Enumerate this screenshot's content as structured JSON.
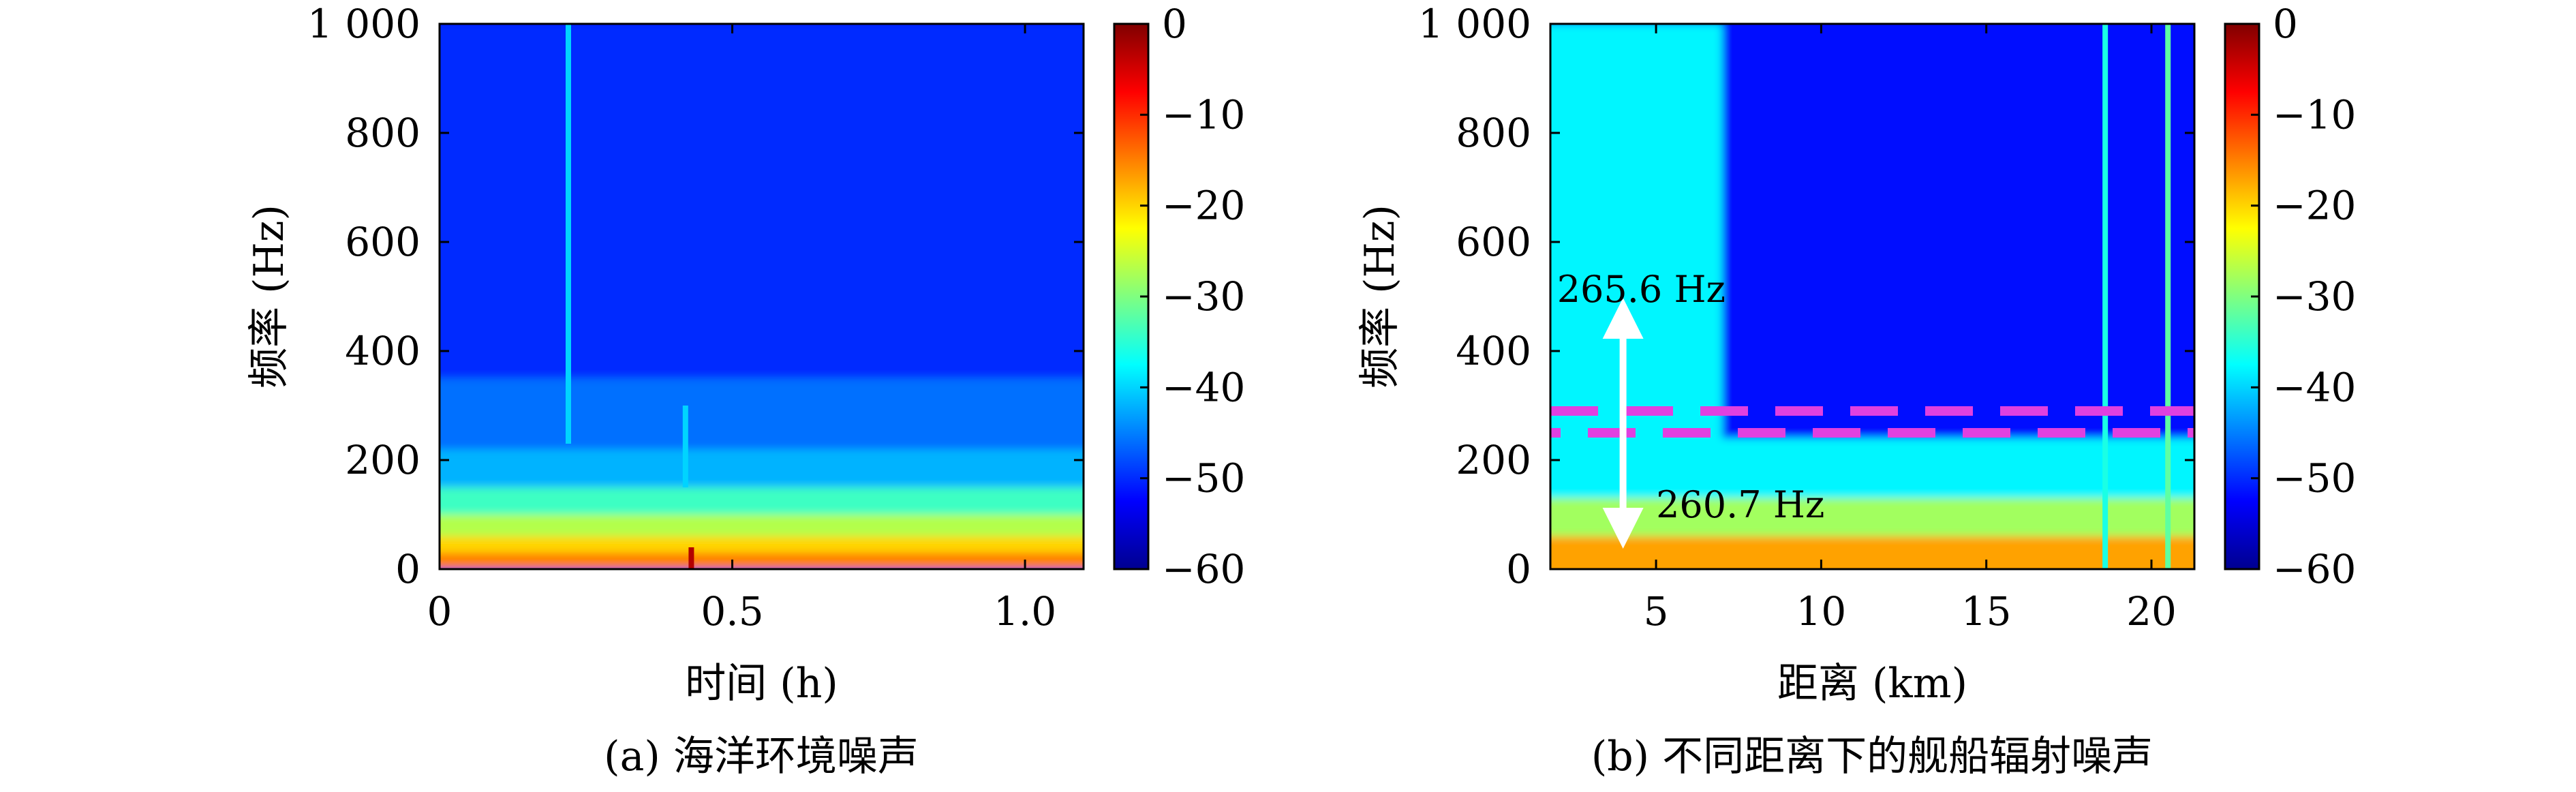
{
  "chart_data": [
    {
      "type": "heatmap",
      "subtitle": "(a) 海洋环境噪声",
      "xlabel": "时间 (h)",
      "ylabel": "频率 (Hz)",
      "xlim": [
        0,
        1.1
      ],
      "ylim": [
        0,
        1000
      ],
      "xticks": [
        0,
        0.5,
        1.0
      ],
      "xtick_labels": [
        "0",
        "0.5",
        "1.0"
      ],
      "yticks": [
        0,
        200,
        400,
        600,
        800,
        1000
      ],
      "ytick_labels": [
        "0",
        "200",
        "400",
        "600",
        "800",
        "1 000"
      ],
      "colorbar": {
        "range": [
          -60,
          0
        ],
        "ticks": [
          0,
          -10,
          -20,
          -30,
          -40,
          -50,
          -60
        ],
        "tick_labels": [
          "0",
          "−10",
          "−20",
          "−30",
          "−40",
          "−50",
          "−60"
        ]
      },
      "bands": [
        {
          "from": 0,
          "to": 30,
          "level": -15
        },
        {
          "from": 30,
          "to": 60,
          "level": -20
        },
        {
          "from": 60,
          "to": 100,
          "level": -27
        },
        {
          "from": 100,
          "to": 150,
          "level": -34
        },
        {
          "from": 150,
          "to": 220,
          "level": -42
        },
        {
          "from": 220,
          "to": 350,
          "level": -46
        },
        {
          "from": 350,
          "to": 1000,
          "level": -50
        }
      ],
      "lines": [
        {
          "x": 0.22,
          "from": 230,
          "to": 1000,
          "level": -40
        },
        {
          "x": 0.42,
          "from": 150,
          "to": 300,
          "level": -40
        },
        {
          "x": 0.43,
          "from": 0,
          "to": 40,
          "level": -3
        }
      ],
      "annotations": []
    },
    {
      "type": "heatmap",
      "subtitle": "(b) 不同距离下的舰船辐射噪声",
      "xlabel": "距离 (km)",
      "ylabel": "频率 (Hz)",
      "xlim": [
        1.8,
        21.3
      ],
      "ylim": [
        0,
        1000
      ],
      "xticks": [
        5,
        10,
        15,
        20
      ],
      "xtick_labels": [
        "5",
        "10",
        "15",
        "20"
      ],
      "yticks": [
        0,
        200,
        400,
        600,
        800,
        1000
      ],
      "ytick_labels": [
        "0",
        "200",
        "400",
        "600",
        "800",
        "1 000"
      ],
      "colorbar": {
        "range": [
          -60,
          0
        ],
        "ticks": [
          0,
          -10,
          -20,
          -30,
          -40,
          -50,
          -60
        ],
        "tick_labels": [
          "0",
          "−10",
          "−20",
          "−30",
          "−40",
          "−50",
          "−60"
        ]
      },
      "regions": [
        {
          "x_from": 1.8,
          "x_to": 7.0,
          "y_from": 0,
          "y_to": 1000,
          "level": -38
        },
        {
          "x_from": 1.8,
          "x_to": 21.3,
          "y_from": 0,
          "y_to": 60,
          "level": -17
        },
        {
          "x_from": 1.8,
          "x_to": 21.3,
          "y_from": 60,
          "y_to": 130,
          "level": -28
        },
        {
          "x_from": 1.8,
          "x_to": 21.3,
          "y_from": 130,
          "y_to": 240,
          "level": -38
        }
      ],
      "lines": [
        {
          "x": 18.6,
          "from": 0,
          "to": 1000,
          "level": -36
        },
        {
          "x": 20.5,
          "from": 0,
          "to": 1000,
          "level": -32
        }
      ],
      "dashed_lines": [
        {
          "y": 290,
          "color": "#e040e0"
        },
        {
          "y": 250,
          "color": "#e040e0"
        }
      ],
      "annotations": [
        {
          "text": "265.6 Hz",
          "arrow_x": 4.0,
          "arrow_from": 265,
          "arrow_to": 460,
          "x": 2.0,
          "y": 490
        },
        {
          "text": "260.7 Hz",
          "arrow_x": 4.0,
          "arrow_from": 265,
          "arrow_to": 75,
          "x": 5.0,
          "y": 95
        }
      ]
    }
  ]
}
